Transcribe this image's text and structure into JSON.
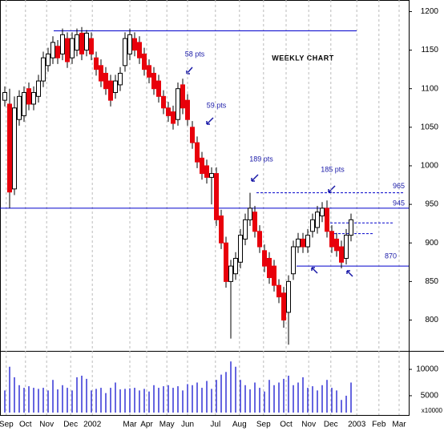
{
  "chart_data": {
    "type": "candlestick",
    "title": "WEEKLY CHART",
    "x": [
      0,
      1,
      2,
      3,
      4,
      5,
      6,
      7,
      8,
      9,
      10,
      11,
      12,
      13,
      14,
      15,
      16,
      17,
      18,
      19,
      20,
      21,
      22,
      23,
      24,
      25,
      26,
      27,
      28,
      29,
      30,
      31,
      32,
      33,
      34,
      35,
      36,
      37,
      38,
      39,
      40,
      41,
      42,
      43,
      44,
      45,
      46,
      47,
      48,
      49,
      50,
      51,
      52,
      53,
      54,
      55,
      56,
      57,
      58,
      59,
      60,
      61,
      62,
      63,
      64,
      65,
      66,
      67,
      68,
      69,
      70,
      71,
      72
    ],
    "open": [
      1085,
      1080,
      970,
      1060,
      1065,
      1100,
      1080,
      1090,
      1110,
      1130,
      1140,
      1155,
      1145,
      1165,
      1140,
      1150,
      1172,
      1150,
      1165,
      1140,
      1130,
      1120,
      1110,
      1095,
      1105,
      1130,
      1145,
      1165,
      1160,
      1145,
      1130,
      1120,
      1110,
      1090,
      1075,
      1070,
      1060,
      1105,
      1085,
      1050,
      1030,
      1010,
      1000,
      985,
      990,
      935,
      900,
      850,
      860,
      875,
      905,
      930,
      940,
      915,
      890,
      880,
      870,
      845,
      835,
      810,
      860,
      895,
      905,
      895,
      915,
      920,
      935,
      945,
      915,
      905,
      895,
      880,
      910
    ],
    "high": [
      1103,
      1100,
      1090,
      1098,
      1103,
      1108,
      1103,
      1118,
      1148,
      1153,
      1168,
      1163,
      1178,
      1173,
      1173,
      1178,
      1180,
      1176,
      1173,
      1148,
      1138,
      1128,
      1118,
      1118,
      1128,
      1173,
      1178,
      1173,
      1168,
      1153,
      1138,
      1128,
      1118,
      1098,
      1083,
      1078,
      1108,
      1113,
      1093,
      1058,
      1038,
      1018,
      1008,
      998,
      998,
      943,
      908,
      878,
      888,
      918,
      938,
      965,
      948,
      923,
      898,
      888,
      878,
      853,
      843,
      858,
      903,
      913,
      913,
      918,
      938,
      948,
      953,
      955,
      923,
      913,
      903,
      918,
      938
    ],
    "low": [
      1077,
      945,
      962,
      1052,
      1057,
      1072,
      1072,
      1082,
      1102,
      1122,
      1132,
      1132,
      1137,
      1127,
      1132,
      1142,
      1137,
      1142,
      1137,
      1117,
      1102,
      1092,
      1077,
      1087,
      1097,
      1122,
      1137,
      1142,
      1132,
      1117,
      1107,
      1092,
      1082,
      1067,
      1057,
      1047,
      1052,
      1067,
      1052,
      1022,
      997,
      982,
      977,
      950,
      922,
      892,
      842,
      776,
      852,
      867,
      897,
      922,
      907,
      887,
      862,
      847,
      837,
      822,
      790,
      768,
      852,
      887,
      887,
      887,
      907,
      912,
      927,
      907,
      887,
      882,
      867,
      872,
      902
    ],
    "close": [
      1095,
      966,
      1075,
      1090,
      1095,
      1080,
      1095,
      1110,
      1140,
      1145,
      1160,
      1140,
      1170,
      1135,
      1165,
      1170,
      1145,
      1172,
      1145,
      1125,
      1110,
      1100,
      1085,
      1110,
      1120,
      1165,
      1170,
      1150,
      1140,
      1125,
      1115,
      1100,
      1090,
      1075,
      1065,
      1055,
      1100,
      1075,
      1060,
      1030,
      1005,
      990,
      985,
      990,
      930,
      900,
      850,
      870,
      880,
      910,
      930,
      945,
      915,
      895,
      870,
      855,
      845,
      830,
      800,
      850,
      895,
      905,
      895,
      910,
      930,
      940,
      945,
      915,
      895,
      890,
      875,
      910,
      930
    ],
    "volume": [
      6000,
      10500,
      8500,
      7000,
      6500,
      6800,
      6500,
      6300,
      6500,
      6000,
      8000,
      6200,
      7000,
      6500,
      6000,
      8500,
      8800,
      8200,
      6000,
      6300,
      6500,
      5500,
      6500,
      7500,
      6200,
      6300,
      6400,
      6500,
      6000,
      6300,
      5800,
      7000,
      6500,
      6800,
      7000,
      6500,
      6800,
      6000,
      7200,
      7000,
      7500,
      6500,
      7800,
      6300,
      8000,
      9000,
      9500,
      11500,
      10500,
      8000,
      7000,
      6200,
      7500,
      6500,
      5800,
      8000,
      7000,
      7500,
      8200,
      8800,
      7000,
      7500,
      8500,
      6500,
      6800,
      6000,
      7000,
      8000,
      6500,
      6000,
      4200,
      5000,
      7500
    ],
    "up_color": "#ffffff",
    "down_color": "#e8000b",
    "volume_color": "#0000cc",
    "line_color": "#0000cc",
    "xlim": [
      -1,
      84
    ],
    "xticks": [
      {
        "value": 0.3,
        "label": "Sep"
      },
      {
        "value": 4.3,
        "label": "Oct"
      },
      {
        "value": 8.7,
        "label": "Nov"
      },
      {
        "value": 13.7,
        "label": "Dec"
      },
      {
        "value": 18.2,
        "label": "2002"
      },
      {
        "value": 26,
        "label": "Mar"
      },
      {
        "value": 29.5,
        "label": "Apr"
      },
      {
        "value": 33.7,
        "label": "May"
      },
      {
        "value": 38,
        "label": "Jun"
      },
      {
        "value": 43.8,
        "label": "Jul"
      },
      {
        "value": 48.8,
        "label": "Aug"
      },
      {
        "value": 53.8,
        "label": "Sep"
      },
      {
        "value": 58.5,
        "label": "Oct"
      },
      {
        "value": 63.2,
        "label": "Nov"
      },
      {
        "value": 67.8,
        "label": "Dec"
      },
      {
        "value": 73.2,
        "label": "2003"
      },
      {
        "value": 77.8,
        "label": "Feb"
      },
      {
        "value": 82,
        "label": "Mar"
      }
    ],
    "ylim": [
      760,
      1215
    ],
    "yticks": [
      800,
      850,
      900,
      950,
      1000,
      1050,
      1100,
      1150,
      1200
    ],
    "volume_ylim": [
      1800,
      13200
    ],
    "volume_yticks": [
      5000,
      10000
    ],
    "volume_unit": "x10000",
    "hlines": [
      {
        "value": 1175
      },
      {
        "value": 945,
        "label": "945"
      },
      {
        "value": 965,
        "label": "965"
      },
      {
        "value": 926
      },
      {
        "value": 912
      },
      {
        "value": 870,
        "label": "870"
      }
    ],
    "annotations": [
      "58 pts",
      "59 pts",
      "189 pts",
      "185 pts"
    ],
    "grid": true
  }
}
